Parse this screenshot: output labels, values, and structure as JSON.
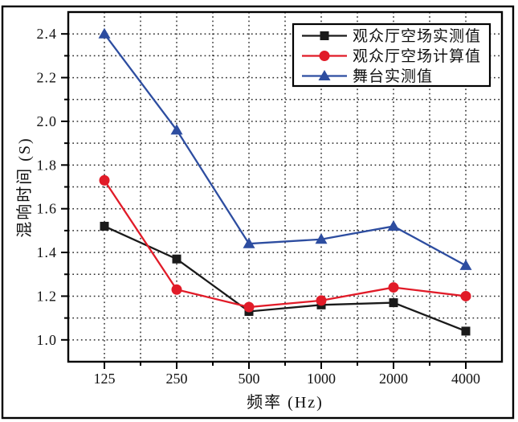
{
  "chart_data": {
    "type": "line",
    "title": "",
    "xlabel": "频率 (Hz)",
    "ylabel": "混响时间 (S)",
    "categories": [
      "125",
      "250",
      "500",
      "1000",
      "2000",
      "4000"
    ],
    "series": [
      {
        "name": "观众厅空场实测值",
        "marker": "square",
        "color": "#1a1a1a",
        "values": [
          1.52,
          1.37,
          1.13,
          1.16,
          1.17,
          1.04
        ]
      },
      {
        "name": "观众厅空场计算值",
        "marker": "circle",
        "color": "#e11b28",
        "values": [
          1.73,
          1.23,
          1.15,
          1.18,
          1.24,
          1.2
        ]
      },
      {
        "name": "舞台实测值",
        "marker": "triangle",
        "color": "#2d4da0",
        "values": [
          2.4,
          1.96,
          1.44,
          1.46,
          1.52,
          1.34
        ]
      }
    ],
    "y_major_ticks": [
      1.0,
      1.2,
      1.4,
      1.6,
      1.8,
      2.0,
      2.2,
      2.4
    ],
    "y_tick_labels": [
      "1.0",
      "1.2",
      "1.4",
      "1.6",
      "1.8",
      "2.0",
      "2.2",
      "2.4"
    ],
    "y_minor_step": 0.1,
    "ylim": [
      0.9,
      2.5
    ],
    "grid": "dotted",
    "grid_color": "#2b2b2b",
    "frame_color": "#000000",
    "background": "#ffffff",
    "legend_position": "top-right"
  }
}
